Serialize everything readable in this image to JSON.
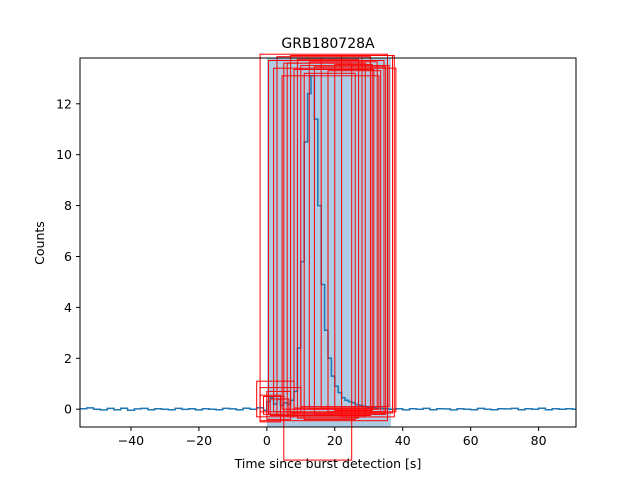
{
  "chart_data": {
    "type": "line",
    "title": "GRB180728A",
    "xlabel": "Time since burst detection [s]",
    "ylabel": "Counts",
    "xlim": [
      -55,
      91
    ],
    "ylim": [
      -0.7,
      13.8
    ],
    "grid": false,
    "xticks": [
      -40,
      -20,
      0,
      20,
      40,
      60,
      80
    ],
    "yticks": [
      0,
      2,
      4,
      6,
      8,
      10,
      12
    ],
    "highlight_region": {
      "x_start": 0,
      "x_end": 36.5,
      "color": "#aecde4"
    },
    "series": [
      {
        "color": "#1f77b4",
        "step": "post",
        "x": [
          -55,
          -53,
          -51,
          -49,
          -47,
          -45,
          -43,
          -41,
          -39,
          -37,
          -35,
          -33,
          -31,
          -29,
          -27,
          -25,
          -23,
          -21,
          -19,
          -17,
          -15,
          -13,
          -11,
          -9,
          -7,
          -5,
          -3,
          -1,
          0,
          1,
          2,
          3,
          4,
          5,
          6,
          7,
          8,
          9,
          10,
          11,
          12,
          13,
          14,
          15,
          16,
          17,
          18,
          19,
          20,
          21,
          22,
          23,
          24,
          25,
          26,
          27,
          28,
          29,
          30,
          31,
          32,
          34,
          36,
          38,
          40,
          42,
          44,
          46,
          48,
          50,
          52,
          54,
          56,
          58,
          60,
          62,
          64,
          66,
          68,
          70,
          72,
          74,
          76,
          78,
          80,
          82,
          84,
          86,
          88,
          90,
          91
        ],
        "y": [
          0.02,
          0.05,
          0.0,
          -0.03,
          0.03,
          -0.02,
          0.04,
          -0.04,
          0.01,
          0.03,
          -0.02,
          0.02,
          0.0,
          -0.02,
          0.03,
          -0.01,
          0.02,
          -0.03,
          0.02,
          0.0,
          -0.02,
          0.03,
          0.01,
          -0.02,
          0.04,
          0.0,
          0.06,
          -0.04,
          0.3,
          0.45,
          0.2,
          0.4,
          0.15,
          0.25,
          0.2,
          0.35,
          0.7,
          2.4,
          5.8,
          10.5,
          12.4,
          13.1,
          11.4,
          8.0,
          4.9,
          3.1,
          2.0,
          1.3,
          0.9,
          0.65,
          0.45,
          0.35,
          0.3,
          0.25,
          0.18,
          0.15,
          0.12,
          0.1,
          0.08,
          0.06,
          0.04,
          0.02,
          0.0,
          0.02,
          -0.03,
          0.02,
          0.0,
          0.03,
          -0.02,
          0.02,
          0.01,
          -0.03,
          0.02,
          0.0,
          -0.02,
          0.03,
          0.0,
          -0.02,
          0.02,
          0.01,
          0.03,
          -0.02,
          0.02,
          0.0,
          0.04,
          -0.02,
          0.02,
          0.0,
          0.02,
          0.0,
          0.0
        ]
      }
    ],
    "overlay_boxes": {
      "color": "#ff0000",
      "boxes": [
        [
          -2.0,
          35.5,
          -0.45,
          13.95
        ],
        [
          0.5,
          34.5,
          -0.2,
          13.7
        ],
        [
          2.0,
          38.0,
          -0.1,
          13.4
        ],
        [
          3.0,
          30.5,
          -0.25,
          13.85
        ],
        [
          4.5,
          33.0,
          0.0,
          13.1
        ],
        [
          6.0,
          29.0,
          -0.3,
          13.6
        ],
        [
          7.0,
          37.0,
          -0.15,
          13.9
        ],
        [
          8.0,
          31.5,
          0.05,
          13.35
        ],
        [
          9.0,
          27.0,
          -0.35,
          13.75
        ],
        [
          10.0,
          36.0,
          0.1,
          13.5
        ],
        [
          11.0,
          26.0,
          -0.4,
          13.2
        ],
        [
          12.5,
          32.5,
          0.0,
          13.65
        ],
        [
          14.0,
          35.0,
          -0.2,
          13.45
        ],
        [
          16.0,
          28.0,
          0.05,
          13.8
        ],
        [
          18.0,
          33.5,
          -0.1,
          13.3
        ],
        [
          20.0,
          31.0,
          -0.05,
          13.55
        ],
        [
          22.0,
          37.5,
          -0.3,
          13.9
        ],
        [
          5.0,
          25.0,
          -2.0,
          13.6
        ],
        [
          -3.0,
          8.0,
          -0.3,
          1.1
        ],
        [
          -2.0,
          10.0,
          -0.1,
          0.85
        ],
        [
          -1.0,
          5.0,
          -0.2,
          0.5
        ],
        [
          0.0,
          7.0,
          -0.4,
          0.7
        ],
        [
          1.0,
          6.5,
          -0.25,
          0.4
        ],
        [
          -2.0,
          4.0,
          -0.5,
          0.55
        ]
      ]
    }
  }
}
